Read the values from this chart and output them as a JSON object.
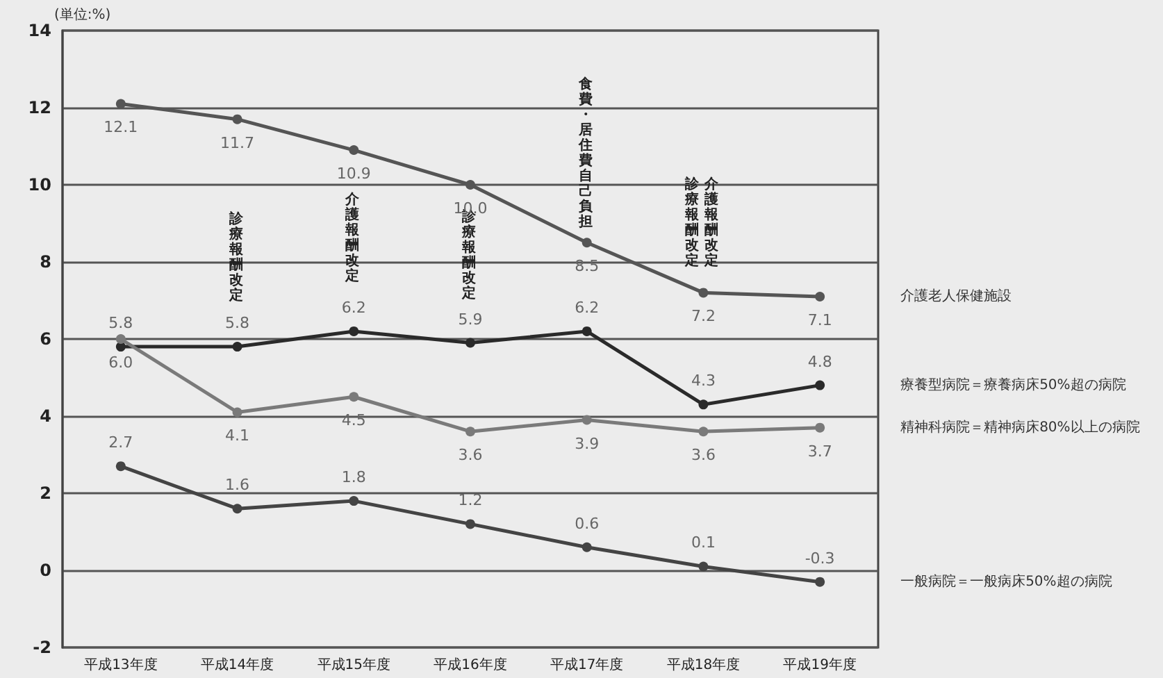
{
  "chart_data": {
    "type": "line",
    "ylabel": "(単位:%)",
    "categories": [
      "平成13年度",
      "平成14年度",
      "平成15年度",
      "平成16年度",
      "平成17年度",
      "平成18年度",
      "平成19年度"
    ],
    "series": [
      {
        "name": "介護老人保健施設",
        "color": "#555555",
        "values": [
          12.1,
          11.7,
          10.9,
          10.0,
          8.5,
          7.2,
          7.1
        ],
        "value_labels": [
          "12.1",
          "11.7",
          "10.9",
          "10.0",
          "8.5",
          "7.2",
          "7.1"
        ]
      },
      {
        "name": "療養型病院＝療養病床50%超の病院",
        "color": "#2a2a2a",
        "values": [
          5.8,
          5.8,
          6.2,
          5.9,
          6.2,
          4.3,
          4.8
        ],
        "value_labels": [
          "5.8",
          "5.8",
          "6.2",
          "5.9",
          "6.2",
          "4.3",
          "4.8"
        ]
      },
      {
        "name": "精神科病院＝精神病床80%以上の病院",
        "color": "#7a7a7a",
        "values": [
          6.0,
          4.1,
          4.5,
          3.6,
          3.9,
          3.6,
          3.7
        ],
        "value_labels": [
          "6.0",
          "4.1",
          "4.5",
          "3.6",
          "3.9",
          "3.6",
          "3.7"
        ]
      },
      {
        "name": "一般病院＝一般病床50%超の病院",
        "color": "#444444",
        "values": [
          2.7,
          1.6,
          1.8,
          1.2,
          0.6,
          0.1,
          -0.3
        ],
        "value_labels": [
          "2.7",
          "1.6",
          "1.8",
          "1.2",
          "0.6",
          "0.1",
          "-0.3"
        ]
      }
    ],
    "annotations": [
      "診療報酬改定",
      "介護報酬改定",
      "診療報酬改定",
      "食費・居住費自己負担",
      "診療報酬改定",
      "介護報酬改定"
    ],
    "ylim": [
      -2,
      14
    ],
    "yticks": [
      -2,
      0,
      2,
      4,
      6,
      8,
      10,
      12,
      14
    ],
    "grid": "y",
    "legend": false,
    "marker": "circle",
    "line_style": "solid"
  }
}
